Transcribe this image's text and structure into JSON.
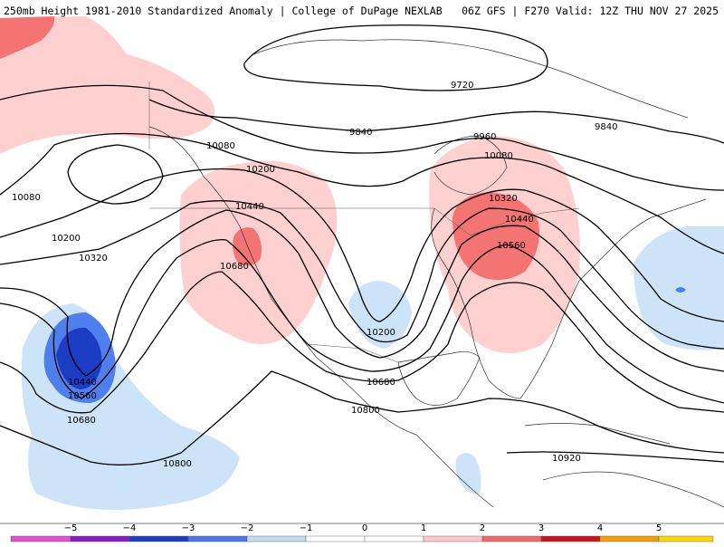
{
  "header": {
    "left": "250mb Height 1981-2010 Standardized Anomaly | College of DuPage NEXLAB",
    "right": "06Z GFS | F270 Valid: 12Z THU NOV 27 2025"
  },
  "contour_labels": {
    "c9720": "9720",
    "c9840a": "9840",
    "c9840b": "9840",
    "c9960": "9960",
    "c10080a": "10080",
    "c10080b": "10080",
    "c10080c": "10080",
    "c10200a": "10200",
    "c10200b": "10200",
    "c10200c": "10200",
    "c10320a": "10320",
    "c10320b": "10320",
    "c10440a": "10440",
    "c10440b": "10440",
    "c10440c": "10440",
    "c10560a": "10560",
    "c10560b": "10560",
    "c10680a": "10680",
    "c10680b": "10680",
    "c10680c": "10680",
    "c10800a": "10800",
    "c10800b": "10800",
    "c10920": "10920"
  },
  "colorbar": {
    "ticks": [
      "−5",
      "−4",
      "−3",
      "−2",
      "−1",
      "0",
      "1",
      "2",
      "3",
      "4",
      "5"
    ],
    "colors": [
      "#e14fd6",
      "#8c19c8",
      "#1c3cc4",
      "#4a76e8",
      "#bfdcf7",
      "#ffffff",
      "#ffffff",
      "#ffc8c8",
      "#f16a6a",
      "#c8141e",
      "#f0a000",
      "#ffd700"
    ]
  }
}
